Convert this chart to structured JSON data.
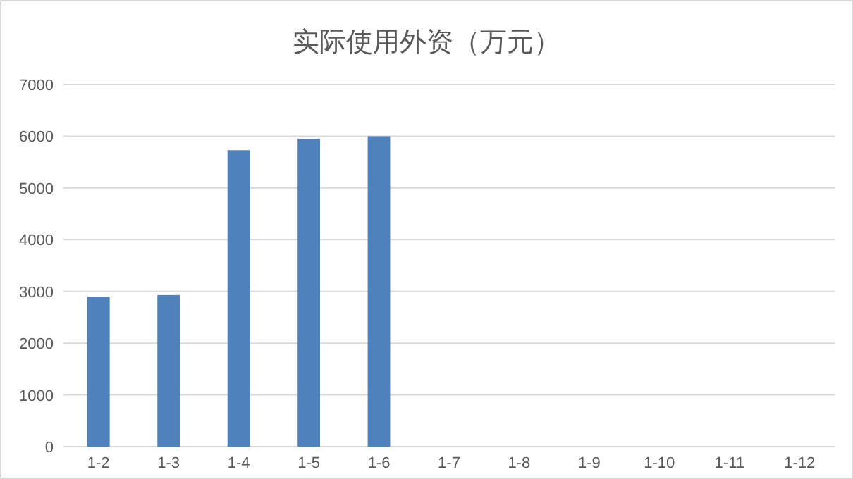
{
  "chart_data": {
    "type": "bar",
    "title": "实际使用外资（万元）",
    "categories": [
      "1-2",
      "1-3",
      "1-4",
      "1-5",
      "1-6",
      "1-7",
      "1-8",
      "1-9",
      "1-10",
      "1-11",
      "1-12"
    ],
    "values": [
      2900,
      2930,
      5730,
      5950,
      6000,
      null,
      null,
      null,
      null,
      null,
      null
    ],
    "color": "#4f81bd",
    "ylim": [
      0,
      7000
    ],
    "yticks": [
      0,
      1000,
      2000,
      3000,
      4000,
      5000,
      6000,
      7000
    ],
    "grid": "y"
  }
}
